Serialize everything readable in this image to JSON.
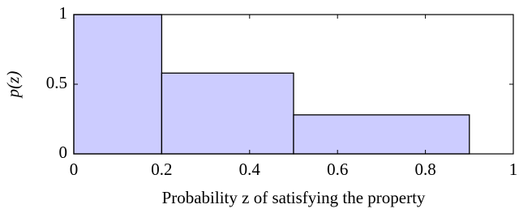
{
  "chart_data": {
    "type": "histogram",
    "x_label": "Probability z of satisfying the property",
    "y_label": "p(z)",
    "bins": [
      0,
      0.2,
      0.5,
      0.9,
      1
    ],
    "values": [
      1,
      0.58,
      0.28,
      0
    ],
    "color": "#ccccff",
    "xlim": [
      0,
      1
    ],
    "ylim": [
      0,
      1
    ],
    "xticks": [
      0,
      0.2,
      0.4,
      0.6,
      0.8,
      1
    ],
    "yticks": [
      0,
      0.5,
      1
    ]
  }
}
